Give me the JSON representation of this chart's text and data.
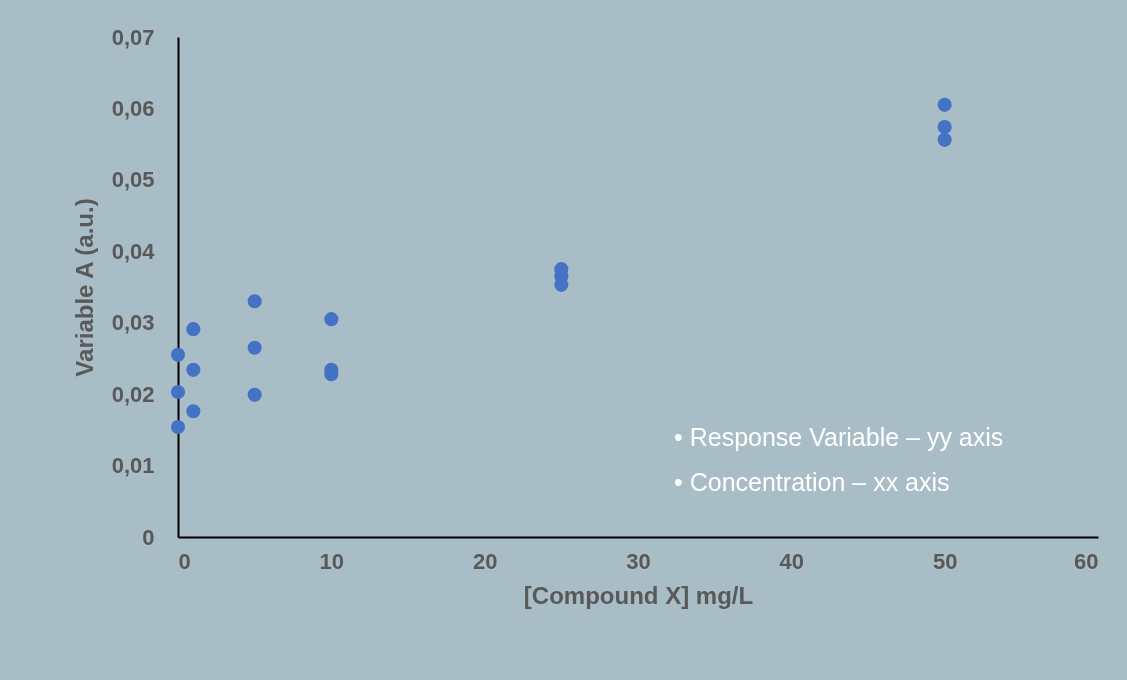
{
  "chart_data": {
    "type": "scatter",
    "xlabel": "[Compound X] mg/L",
    "ylabel": "Variable A (a.u.)",
    "series": [
      {
        "color": "#4472c4",
        "x": [
          0,
          0,
          0,
          1,
          1,
          1,
          5,
          5,
          5,
          10,
          10,
          10,
          25,
          25,
          25,
          50,
          50,
          50
        ],
        "values": [
          0.0255,
          0.0203,
          0.0154,
          0.0291,
          0.0234,
          0.0176,
          0.033,
          0.0265,
          0.0199,
          0.0305,
          0.0234,
          0.0228,
          0.0375,
          0.0365,
          0.0353,
          0.0605,
          0.0574,
          0.0556
        ]
      }
    ],
    "xlim": [
      0,
      60
    ],
    "xticks": [
      0,
      10,
      20,
      30,
      40,
      50,
      60
    ],
    "ylim": [
      0,
      0.07
    ],
    "yticks": [
      0,
      {
        "value": 0.01,
        "label": "0,01"
      },
      {
        "value": 0.02,
        "label": "0,02"
      },
      {
        "value": 0.03,
        "label": "0,03"
      },
      {
        "value": 0.04,
        "label": "0,04"
      },
      {
        "value": 0.05,
        "label": "0,05"
      },
      {
        "value": 0.06,
        "label": "0,06"
      },
      {
        "value": 0.07,
        "label": "0,07"
      }
    ],
    "annotations": [
      "•  Response Variable – yy axis",
      "•  Concentration – xx axis"
    ],
    "marker": "circle",
    "grid": false,
    "legend": false
  }
}
